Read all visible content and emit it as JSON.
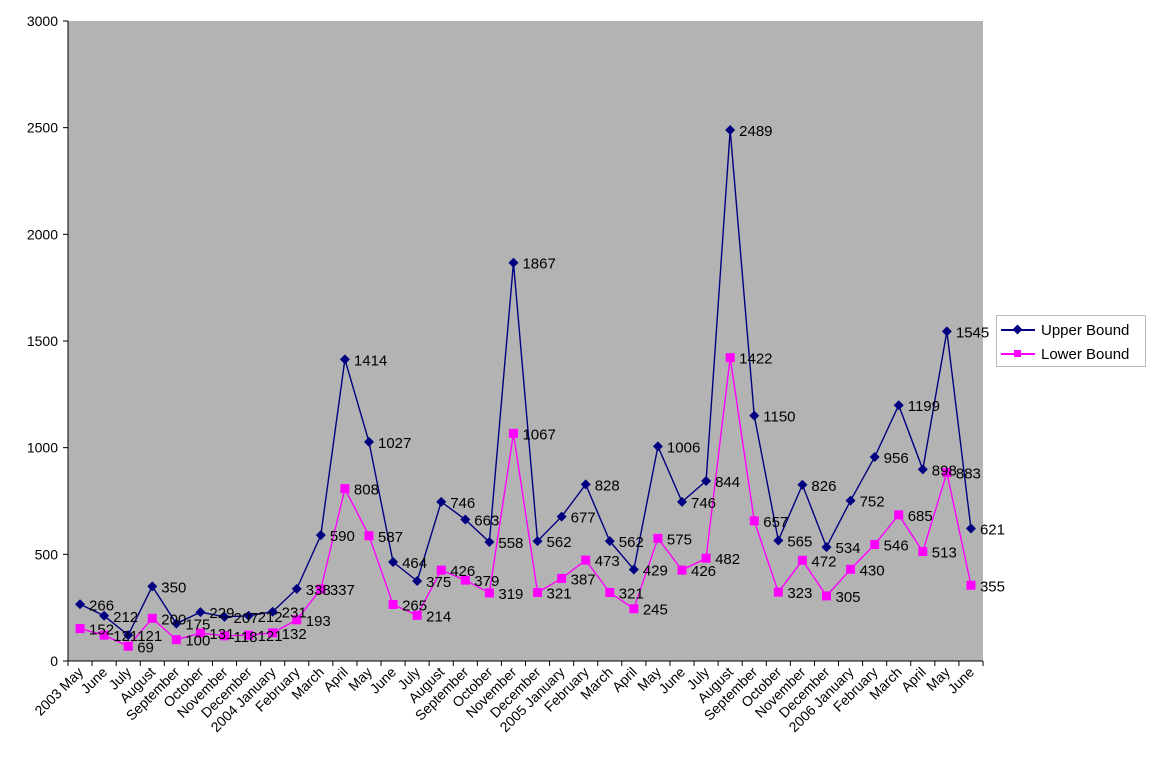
{
  "chart_data": {
    "type": "line",
    "title": "",
    "xlabel": "",
    "ylabel": "",
    "ylim": [
      0,
      3000
    ],
    "yticks": [
      0,
      500,
      1000,
      1500,
      2000,
      2500,
      3000
    ],
    "grid": false,
    "legend_position": "right",
    "plot_background": "#b3b3b3",
    "categories": [
      "2003 May",
      "June",
      "July",
      "August",
      "September",
      "October",
      "November",
      "December",
      "2004 January",
      "February",
      "March",
      "April",
      "May",
      "June",
      "July",
      "August",
      "September",
      "October",
      "November",
      "December",
      "2005 January",
      "February",
      "March",
      "April",
      "May",
      "June",
      "July",
      "August",
      "September",
      "October",
      "November",
      "December",
      "2006 January",
      "February",
      "March",
      "April",
      "May",
      "June"
    ],
    "series": [
      {
        "name": "Upper Bound",
        "color": "#000080",
        "marker": "diamond",
        "values": [
          266,
          212,
          121,
          350,
          175,
          229,
          207,
          212,
          231,
          338,
          590,
          1414,
          1027,
          464,
          375,
          746,
          663,
          558,
          1867,
          562,
          677,
          828,
          562,
          429,
          1006,
          746,
          844,
          2489,
          1150,
          565,
          826,
          534,
          752,
          956,
          1199,
          898,
          1545,
          621
        ]
      },
      {
        "name": "Lower Bound",
        "color": "#ff00ff",
        "marker": "square",
        "values": [
          152,
          121,
          69,
          200,
          100,
          131,
          118,
          121,
          132,
          193,
          337,
          808,
          587,
          265,
          214,
          426,
          379,
          319,
          1067,
          321,
          387,
          473,
          321,
          245,
          575,
          426,
          482,
          1422,
          657,
          323,
          472,
          305,
          430,
          546,
          685,
          513,
          883,
          355
        ]
      }
    ]
  }
}
